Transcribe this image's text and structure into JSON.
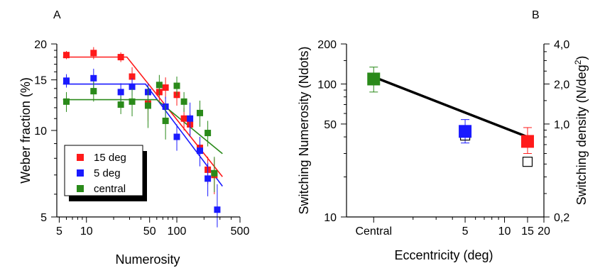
{
  "figure": {
    "panels": [
      "A",
      "B"
    ]
  },
  "chart_data": [
    {
      "type": "scatter",
      "panel_label": "A",
      "xlabel": "Numerosity",
      "ylabel": "Weber fraction (%)",
      "xscale": "log",
      "yscale": "log",
      "xlim": [
        4.7,
        500
      ],
      "ylim": [
        5,
        20
      ],
      "xticks": [
        5,
        10,
        50,
        100,
        500
      ],
      "xtick_labels": [
        "5",
        "10",
        "50",
        "100",
        "500"
      ],
      "yticks": [
        5,
        10,
        15,
        20
      ],
      "ytick_labels": [
        "5",
        "10",
        "15",
        "20"
      ],
      "legend_position": "bottom-left",
      "series": [
        {
          "name": "15 deg",
          "color": "#ff1a1a",
          "points": [
            {
              "x": 6,
              "y": 18.3,
              "err": 0.6
            },
            {
              "x": 12,
              "y": 18.6,
              "err": 0.9
            },
            {
              "x": 24,
              "y": 18.0,
              "err": 0.7
            },
            {
              "x": 32,
              "y": 15.4,
              "err": 1.2
            },
            {
              "x": 48,
              "y": 12.4,
              "err": 1.6
            },
            {
              "x": 64,
              "y": 13.6,
              "err": 1.0
            },
            {
              "x": 75,
              "y": 14.1,
              "err": 1.2
            },
            {
              "x": 100,
              "y": 13.3,
              "err": 1.1
            },
            {
              "x": 120,
              "y": 11.0,
              "err": 1.0
            },
            {
              "x": 140,
              "y": 10.5,
              "err": 0.9
            },
            {
              "x": 180,
              "y": 8.7,
              "err": 0.8
            },
            {
              "x": 220,
              "y": 7.3,
              "err": 0.8
            },
            {
              "x": 260,
              "y": 7.0,
              "err": 1.0
            }
          ],
          "fit": [
            [
              5.5,
              18.0
            ],
            [
              28,
              18.0
            ],
            [
              320,
              6.9
            ]
          ]
        },
        {
          "name": "5 deg",
          "color": "#1a1aff",
          "points": [
            {
              "x": 6,
              "y": 14.9,
              "err": 0.8
            },
            {
              "x": 12,
              "y": 15.2,
              "err": 1.2
            },
            {
              "x": 24,
              "y": 13.6,
              "err": 1.0
            },
            {
              "x": 32,
              "y": 14.2,
              "err": 1.0
            },
            {
              "x": 48,
              "y": 13.6,
              "err": 1.0
            },
            {
              "x": 75,
              "y": 12.1,
              "err": 1.0
            },
            {
              "x": 100,
              "y": 9.5,
              "err": 1.0
            },
            {
              "x": 140,
              "y": 11.0,
              "err": 1.5
            },
            {
              "x": 180,
              "y": 8.5,
              "err": 1.0
            },
            {
              "x": 220,
              "y": 6.8,
              "err": 0.9
            },
            {
              "x": 280,
              "y": 5.3,
              "err": 1.2
            }
          ],
          "fit": [
            [
              5.5,
              14.5
            ],
            [
              45,
              14.5
            ],
            [
              320,
              6.4
            ]
          ]
        },
        {
          "name": "central",
          "color": "#2a8a1a",
          "points": [
            {
              "x": 6,
              "y": 12.6,
              "err": 1.0
            },
            {
              "x": 12,
              "y": 13.7,
              "err": 1.1
            },
            {
              "x": 24,
              "y": 12.3,
              "err": 0.9
            },
            {
              "x": 32,
              "y": 12.6,
              "err": 1.4
            },
            {
              "x": 48,
              "y": 12.2,
              "err": 2.0
            },
            {
              "x": 64,
              "y": 14.4,
              "err": 1.2
            },
            {
              "x": 75,
              "y": 10.8,
              "err": 1.5
            },
            {
              "x": 100,
              "y": 14.3,
              "err": 1.1
            },
            {
              "x": 120,
              "y": 12.6,
              "err": 1.0
            },
            {
              "x": 180,
              "y": 11.5,
              "err": 1.2
            },
            {
              "x": 220,
              "y": 9.8,
              "err": 1.0
            },
            {
              "x": 260,
              "y": 7.1,
              "err": 1.0
            }
          ],
          "fit": [
            [
              5.5,
              12.8
            ],
            [
              60,
              12.8
            ],
            [
              320,
              8.3
            ]
          ]
        }
      ]
    },
    {
      "type": "scatter",
      "panel_label": "B",
      "xlabel": "Eccentricity (deg)",
      "ylabel": "Switching Numerosity (Ndots)",
      "ylabel_right": "Switching density (N/deg²)",
      "ylabel_right_parts": [
        "Switching density (N/deg",
        "2",
        ")"
      ],
      "xtick_labels": [
        "Central",
        "5",
        "10",
        "15",
        "20"
      ],
      "xtick_positions": [
        1,
        5,
        10,
        15,
        20
      ],
      "xscale": "log",
      "yscale": "log",
      "xlim": [
        0.62,
        20
      ],
      "ylim": [
        10,
        200
      ],
      "yticks": [
        10,
        50,
        100,
        200
      ],
      "ytick_labels": [
        "10",
        "50",
        "100",
        "200"
      ],
      "yticks_right": [
        0.2,
        1.0,
        2.0,
        4.0
      ],
      "ytick_labels_right": [
        "0,2",
        "1,0",
        "2,0",
        "4,0"
      ],
      "series": [
        {
          "name": "central",
          "color": "#2a8a1a",
          "x": 1,
          "y": 109,
          "err_lo": 22,
          "err_hi": 25,
          "open_y": 109
        },
        {
          "name": "5 deg",
          "color": "#1a1aff",
          "x": 5,
          "y": 44,
          "err_lo": 8,
          "err_hi": 10,
          "open_y": 41
        },
        {
          "name": "15 deg",
          "color": "#ff1a1a",
          "x": 15,
          "y": 37,
          "err_lo": 7,
          "err_hi": 10,
          "open_y": 26
        }
      ],
      "fit_line": [
        [
          1,
          113
        ],
        [
          15,
          40
        ]
      ]
    }
  ]
}
